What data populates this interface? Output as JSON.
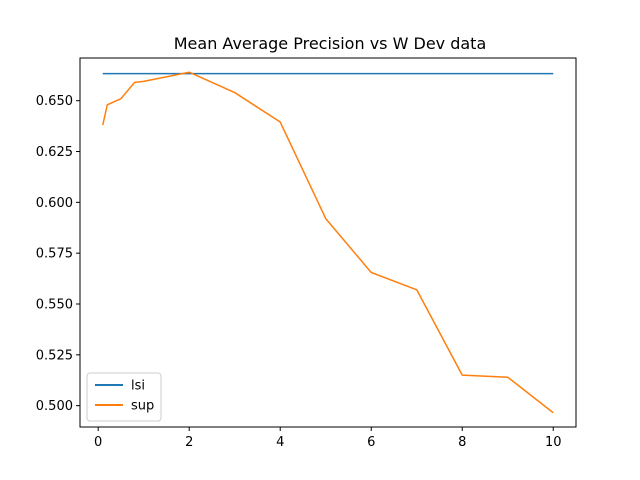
{
  "chart_data": {
    "type": "line",
    "title": "Mean Average Precision vs W Dev data",
    "xlabel": "",
    "ylabel": "",
    "xlim": [
      -0.4,
      10.5
    ],
    "ylim": [
      0.4895,
      0.671
    ],
    "x_ticks": [
      0,
      2,
      4,
      6,
      8,
      10
    ],
    "x_tick_labels": [
      "0",
      "2",
      "4",
      "6",
      "8",
      "10"
    ],
    "y_ticks": [
      0.5,
      0.525,
      0.55,
      0.575,
      0.6,
      0.625,
      0.65
    ],
    "y_tick_labels": [
      "0.500",
      "0.525",
      "0.550",
      "0.575",
      "0.600",
      "0.625",
      "0.650"
    ],
    "grid": false,
    "legend_position": "lower-left",
    "series": [
      {
        "name": "lsi",
        "color": "#1f77b4",
        "x": [
          0.1,
          10
        ],
        "y": [
          0.6633,
          0.6633
        ]
      },
      {
        "name": "sup",
        "color": "#ff7f0e",
        "x": [
          0.1,
          0.2,
          0.5,
          0.8,
          1,
          2,
          3,
          4,
          5,
          6,
          7,
          8,
          9,
          10
        ],
        "y": [
          0.638,
          0.648,
          0.651,
          0.659,
          0.6595,
          0.664,
          0.654,
          0.6395,
          0.592,
          0.5655,
          0.557,
          0.515,
          0.514,
          0.4965
        ]
      }
    ]
  }
}
